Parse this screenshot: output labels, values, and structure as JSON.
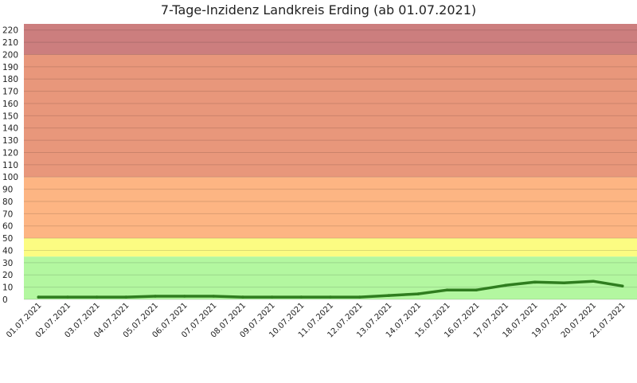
{
  "chart_data": {
    "type": "line",
    "title": "7-Tage-Inzidenz Landkreis Erding (ab 01.07.2021)",
    "xlabel": "",
    "ylabel": "",
    "ylim": [
      0,
      225
    ],
    "yticks": [
      0,
      10,
      20,
      30,
      40,
      50,
      60,
      70,
      80,
      90,
      100,
      110,
      120,
      130,
      140,
      150,
      160,
      170,
      180,
      190,
      200,
      210,
      220
    ],
    "grid": true,
    "legend": "none",
    "categories": [
      "01.07.2021",
      "02.07.2021",
      "03.07.2021",
      "04.07.2021",
      "05.07.2021",
      "06.07.2021",
      "07.07.2021",
      "08.07.2021",
      "09.07.2021",
      "10.07.2021",
      "11.07.2021",
      "12.07.2021",
      "13.07.2021",
      "14.07.2021",
      "15.07.2021",
      "16.07.2021",
      "17.07.2021",
      "18.07.2021",
      "19.07.2021",
      "20.07.2021",
      "21.07.2021"
    ],
    "series": [
      {
        "values": [
          1.9,
          1.9,
          1.9,
          1.9,
          2.6,
          2.6,
          2.6,
          1.9,
          1.9,
          1.9,
          1.9,
          1.9,
          3.2,
          4.5,
          7.7,
          7.7,
          11.5,
          14.1,
          13.5,
          14.8,
          10.9
        ],
        "color": "#2f7d1f"
      }
    ],
    "bands": [
      {
        "from": 0,
        "to": 35,
        "color": "#b3f7a0"
      },
      {
        "from": 35,
        "to": 50,
        "color": "#fcfc82"
      },
      {
        "from": 50,
        "to": 100,
        "color": "#fdb583"
      },
      {
        "from": 100,
        "to": 200,
        "color": "#e8977b"
      },
      {
        "from": 200,
        "to": 225,
        "color": "#cc7e7e"
      }
    ]
  }
}
